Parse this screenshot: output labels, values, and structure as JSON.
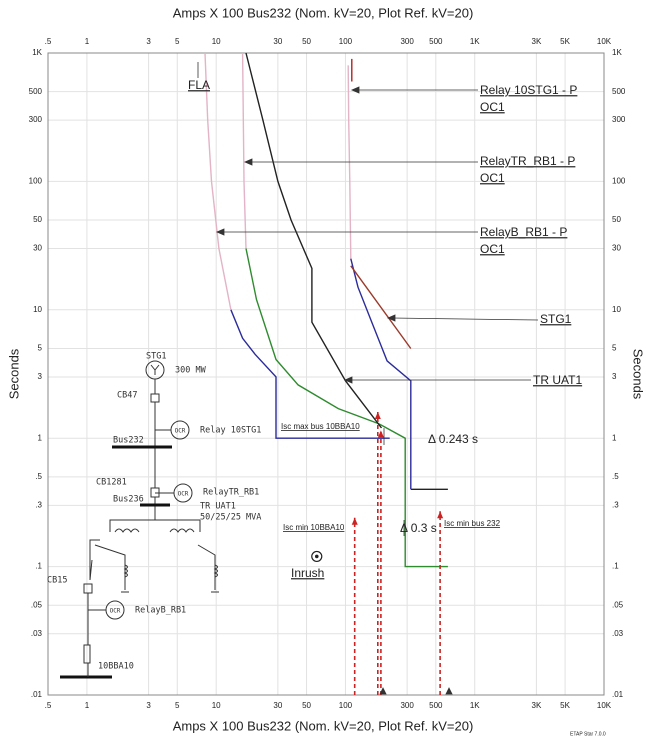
{
  "chart_data": {
    "type": "line",
    "title": "Amps  X  100   Bus232 (Nom. kV=20, Plot Ref. kV=20)",
    "ylabel": "Seconds",
    "xscale": "log",
    "yscale": "log",
    "grid": true,
    "xlim": [
      0.5,
      10000
    ],
    "ylim": [
      0.01,
      1000
    ],
    "xticks": [
      {
        "value": 0.5,
        "label": ".5"
      },
      1,
      3,
      5,
      10,
      30,
      50,
      100,
      300,
      500,
      {
        "value": 1000,
        "label": "1K"
      },
      {
        "value": 3000,
        "label": "3K"
      },
      {
        "value": 5000,
        "label": "5K"
      },
      {
        "value": 10000,
        "label": "10K"
      }
    ],
    "yticks": [
      {
        "value": 0.01,
        "label": ".01"
      },
      {
        "value": 0.03,
        "label": ".03"
      },
      {
        "value": 0.05,
        "label": ".05"
      },
      {
        "value": 0.1,
        "label": ".1"
      },
      {
        "value": 0.3,
        "label": ".3"
      },
      {
        "value": 0.5,
        "label": ".5"
      },
      1,
      3,
      5,
      10,
      30,
      50,
      100,
      300,
      500,
      {
        "value": 1000,
        "label": "1K"
      }
    ],
    "series": [
      {
        "color": "#e3b3c6",
        "x": [
          8.2,
          8.6,
          9.2,
          10.5,
          13
        ],
        "y": [
          1000,
          300,
          100,
          30,
          10
        ]
      },
      {
        "color": "#2b2b9c",
        "x": [
          13,
          16,
          20,
          29,
          29,
          220
        ],
        "y": [
          10,
          6,
          4.5,
          3,
          1,
          1
        ]
      },
      {
        "color": "#e3b3c6",
        "x": [
          16,
          16.4,
          17
        ],
        "y": [
          1000,
          100,
          30
        ]
      },
      {
        "color": "#2e8b2e",
        "x": [
          17,
          20.5,
          29,
          43,
          88,
          180,
          290,
          290,
          620
        ],
        "y": [
          30,
          12,
          4.1,
          2.6,
          1.7,
          1.3,
          1,
          0.1,
          0.1
        ]
      },
      {
        "color": "#222222",
        "x": [
          17,
          23,
          30,
          38,
          55,
          55,
          100,
          190
        ],
        "y": [
          1000,
          300,
          100,
          50,
          21,
          8,
          2.8,
          1.2
        ]
      },
      {
        "color": "#222222",
        "x": [
          320,
          620
        ],
        "y": [
          0.4,
          0.4
        ]
      },
      {
        "color": "#e3b3c6",
        "x": [
          105,
          106,
          108,
          110
        ],
        "y": [
          800,
          300,
          100,
          25
        ]
      },
      {
        "color": "#b02020",
        "x": [
          112,
          112
        ],
        "y": [
          900,
          600
        ]
      },
      {
        "color": "#2b2b9c",
        "x": [
          110,
          125,
          160,
          210,
          320,
          320
        ],
        "y": [
          25,
          15,
          8,
          4,
          2.8,
          0.4
        ]
      },
      {
        "color": "#9b3a2a",
        "x": [
          110,
          320
        ],
        "y": [
          22,
          5
        ]
      },
      {
        "color": "#cc2222",
        "dashed": true,
        "arrow": true,
        "x": [
          118,
          118
        ],
        "y": [
          0.01,
          0.24
        ]
      },
      {
        "color": "#cc2222",
        "dashed": true,
        "arrow": true,
        "x": [
          178,
          178
        ],
        "y": [
          0.01,
          1.6
        ]
      },
      {
        "color": "#cc2222",
        "dashed": true,
        "arrow": true,
        "x": [
          188,
          188
        ],
        "y": [
          0.01,
          1.15
        ]
      },
      {
        "color": "#cc2222",
        "dashed": true,
        "arrow": true,
        "x": [
          540,
          540
        ],
        "y": [
          0.01,
          0.27
        ]
      },
      {
        "color": "#222222",
        "marker": "circle",
        "x": [
          60
        ],
        "y": [
          0.12
        ]
      }
    ]
  },
  "annotations": [
    "FLA",
    "Relay 10STG1 - P",
    "OC1",
    "RelayTR_RB1 - P",
    "OC1",
    "RelayB_RB1 - P",
    "OC1",
    "STG1",
    "TR UAT1",
    "Isc max bus 10BBA10",
    "Δ 0.243 s",
    "Isc min 10BBA10",
    "Δ 0.3 s",
    "Isc min bus 232",
    "Inrush",
    "ETAP Star 7.0.0"
  ],
  "diagram": {
    "labels": [
      "STG1",
      "300 MW",
      "CB47",
      "OCR",
      "Relay 10STG1",
      "Bus232",
      "CB1281",
      "OCR",
      "RelayTR_RB1",
      "Bus236",
      "TR UAT1",
      "50/25/25 MVA",
      "CB15",
      "OCR",
      "RelayB_RB1",
      "10BBA10"
    ]
  }
}
